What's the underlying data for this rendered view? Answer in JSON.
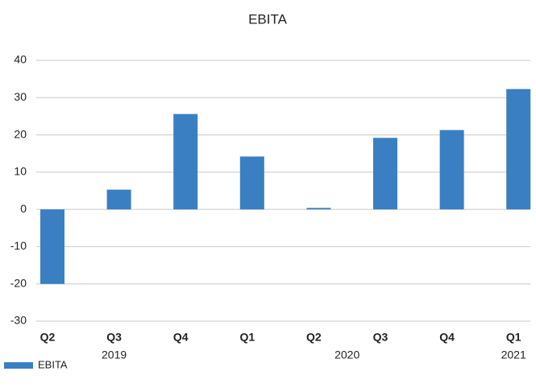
{
  "chart_data": {
    "type": "bar",
    "title": "EBITA",
    "categories": [
      "Q2",
      "Q3",
      "Q4",
      "Q1",
      "Q2",
      "Q3",
      "Q4",
      "Q1"
    ],
    "groups": [
      {
        "label": "2019",
        "start": 0,
        "end": 2
      },
      {
        "label": "2020",
        "start": 3,
        "end": 6
      },
      {
        "label": "2021",
        "start": 7,
        "end": 7
      }
    ],
    "series": [
      {
        "name": "EBITA",
        "color": "#3a7fc1",
        "values": [
          -20,
          5.3,
          25.6,
          14.2,
          0.4,
          19.2,
          21.3,
          32.3
        ]
      }
    ],
    "ylim": [
      -30,
      40
    ],
    "yticks": [
      -30,
      -20,
      -10,
      0,
      10,
      20,
      30,
      40
    ],
    "grid": true,
    "legend": "bottom-left"
  }
}
